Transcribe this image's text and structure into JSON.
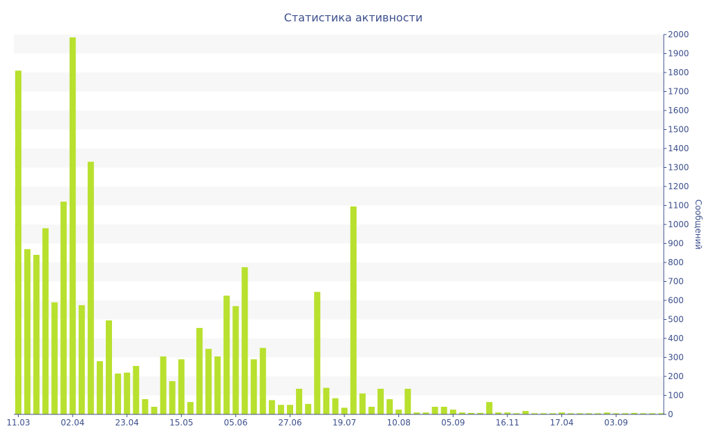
{
  "chart_data": {
    "type": "bar",
    "title": "Статистика активности",
    "xlabel": "",
    "ylabel": "Сообщений",
    "ylim": [
      0,
      2000
    ],
    "y_ticks": [
      0,
      100,
      200,
      300,
      400,
      500,
      600,
      700,
      800,
      900,
      1000,
      1100,
      1200,
      1300,
      1400,
      1500,
      1600,
      1700,
      1800,
      1900,
      2000
    ],
    "y_axis_position": "right",
    "x_tick_labels": [
      {
        "label": "11.03",
        "index": 0
      },
      {
        "label": "02.04",
        "index": 6
      },
      {
        "label": "23.04",
        "index": 12
      },
      {
        "label": "15.05",
        "index": 18
      },
      {
        "label": "05.06",
        "index": 24
      },
      {
        "label": "27.06",
        "index": 30
      },
      {
        "label": "19.07",
        "index": 36
      },
      {
        "label": "10.08",
        "index": 42
      },
      {
        "label": "05.09",
        "index": 48
      },
      {
        "label": "16.11",
        "index": 54
      },
      {
        "label": "17.04",
        "index": 60
      },
      {
        "label": "03.09",
        "index": 66
      }
    ],
    "values": [
      1810,
      870,
      840,
      980,
      590,
      1120,
      1985,
      575,
      1330,
      280,
      495,
      215,
      220,
      255,
      80,
      40,
      305,
      175,
      290,
      65,
      455,
      345,
      305,
      625,
      570,
      775,
      290,
      350,
      75,
      50,
      50,
      135,
      55,
      645,
      140,
      85,
      35,
      1095,
      110,
      40,
      135,
      80,
      25,
      135,
      10,
      10,
      40,
      40,
      25,
      10,
      8,
      8,
      65,
      10,
      10,
      6,
      18,
      6,
      6,
      6,
      10,
      6,
      6,
      6,
      6,
      10,
      6,
      6,
      8,
      6,
      6,
      6
    ],
    "grid": "alternating horizontal bands",
    "legend": "none",
    "colors": {
      "bar": "#b8e02e",
      "band": "#f7f7f7",
      "text": "#3c4f8c",
      "axis": "#3c4f8c"
    }
  }
}
